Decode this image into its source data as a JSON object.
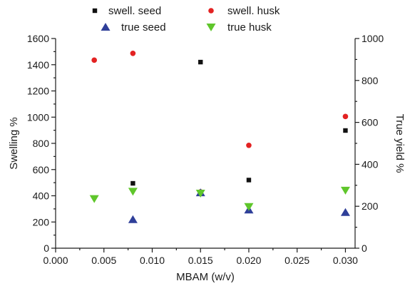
{
  "chart_data": {
    "type": "scatter",
    "title": "",
    "xlabel": "MBAM (w/v)",
    "ylabel": "Swelling %",
    "y2label": "True yield %",
    "xlim": [
      0.0,
      0.031
    ],
    "ylim": [
      0,
      1600
    ],
    "y2lim": [
      0,
      1000
    ],
    "xticks": [
      "0.000",
      "0.005",
      "0.010",
      "0.015",
      "0.020",
      "0.025",
      "0.030"
    ],
    "yticks": [
      "0",
      "200",
      "400",
      "600",
      "800",
      "1000",
      "1200",
      "1400",
      "1600"
    ],
    "y2ticks": [
      "0",
      "200",
      "400",
      "600",
      "800",
      "1000"
    ],
    "grid": false,
    "legend_position": "top",
    "series": [
      {
        "name": "swell. seed",
        "axis": "left",
        "marker": "square",
        "color": "#111111",
        "x": [
          0.008,
          0.015,
          0.02,
          0.03
        ],
        "y": [
          495,
          1420,
          520,
          898
        ]
      },
      {
        "name": "swell. husk",
        "axis": "left",
        "marker": "circle",
        "color": "#e32222",
        "x": [
          0.004,
          0.008,
          0.015,
          0.02,
          0.03
        ],
        "y": [
          1435,
          1487,
          430,
          785,
          1005
        ]
      },
      {
        "name": "true seed",
        "axis": "right",
        "marker": "triangle-up",
        "color": "#2f3f99",
        "x": [
          0.008,
          0.015,
          0.02,
          0.03
        ],
        "y": [
          137,
          265,
          183,
          171
        ]
      },
      {
        "name": "true husk",
        "axis": "right",
        "marker": "triangle-down",
        "color": "#5fc62b",
        "x": [
          0.004,
          0.008,
          0.015,
          0.02,
          0.03
        ],
        "y": [
          236,
          271,
          262,
          198,
          276
        ]
      }
    ]
  }
}
